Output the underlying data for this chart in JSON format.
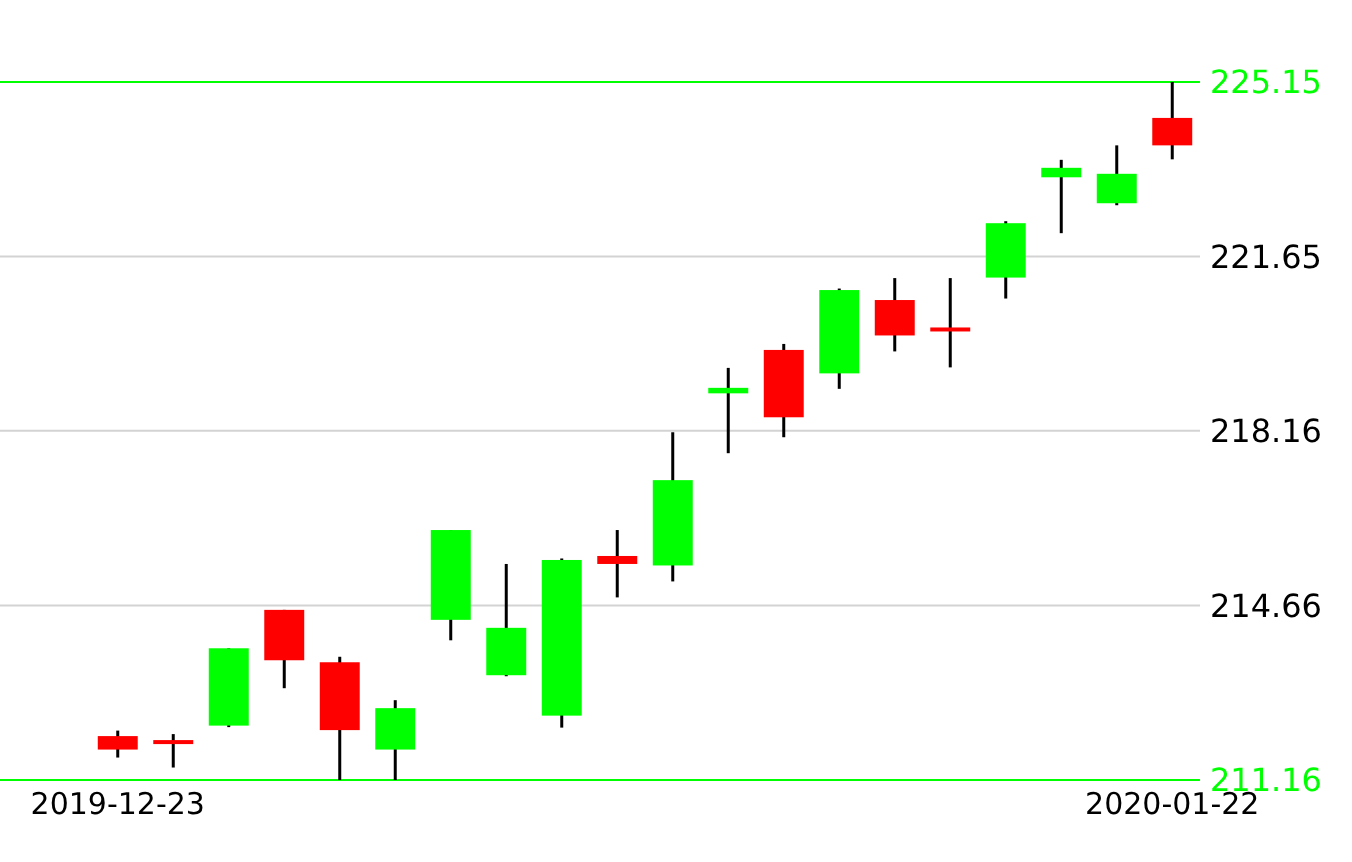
{
  "chart_data": {
    "type": "candlestick",
    "categories": [
      "2019-12-23",
      null,
      null,
      null,
      null,
      null,
      null,
      null,
      null,
      null,
      null,
      null,
      null,
      null,
      null,
      null,
      null,
      null,
      null,
      "2020-01-22"
    ],
    "ohlc": [
      [
        212.04,
        212.15,
        211.61,
        211.77
      ],
      [
        211.96,
        212.08,
        211.41,
        211.9
      ],
      [
        212.25,
        213.8,
        212.22,
        213.8
      ],
      [
        214.57,
        214.57,
        213.0,
        213.56
      ],
      [
        213.52,
        213.63,
        211.16,
        212.16
      ],
      [
        211.77,
        212.76,
        211.16,
        212.6
      ],
      [
        214.37,
        216.17,
        213.96,
        216.17
      ],
      [
        213.26,
        215.49,
        213.24,
        214.21
      ],
      [
        212.45,
        215.6,
        212.21,
        215.57
      ],
      [
        215.65,
        216.17,
        214.82,
        215.49
      ],
      [
        215.46,
        218.13,
        215.14,
        217.17
      ],
      [
        218.91,
        219.42,
        217.71,
        219.02
      ],
      [
        219.78,
        219.9,
        218.03,
        218.43
      ],
      [
        219.31,
        221.01,
        219.0,
        220.98
      ],
      [
        220.78,
        221.22,
        219.75,
        220.07
      ],
      [
        220.23,
        221.22,
        219.43,
        220.16
      ],
      [
        221.23,
        222.36,
        220.81,
        222.32
      ],
      [
        223.24,
        223.59,
        222.12,
        223.43
      ],
      [
        222.72,
        223.88,
        222.68,
        223.31
      ],
      [
        224.43,
        225.15,
        223.6,
        223.88
      ]
    ],
    "colors": [
      "#ff0000",
      "#ff0000",
      "#00ff00",
      "#ff0000",
      "#ff0000",
      "#00ff00",
      "#00ff00",
      "#00ff00",
      "#00ff00",
      "#ff0000",
      "#00ff00",
      "#00ff00",
      "#ff0000",
      "#00ff00",
      "#ff0000",
      "#ff0000",
      "#00ff00",
      "#00ff00",
      "#00ff00",
      "#ff0000"
    ],
    "ylim": [
      211.16,
      225.15
    ],
    "yticks": [
      211.16,
      214.66,
      218.16,
      221.65,
      225.15
    ],
    "grid": "y"
  }
}
